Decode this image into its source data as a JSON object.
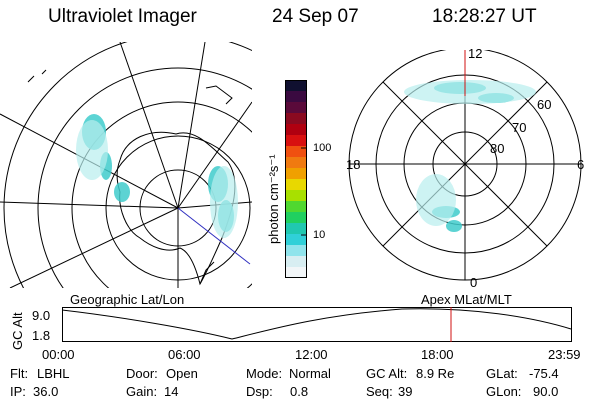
{
  "header": {
    "instrument": "Ultraviolet Imager",
    "date": "24 Sep 07",
    "time": "18:28:27 UT"
  },
  "colorbar": {
    "unit_label": "photon cm⁻²s⁻¹",
    "ticks": [
      "100",
      "10"
    ],
    "colors": [
      "#101030",
      "#3a0a40",
      "#5a0a3a",
      "#8a0a20",
      "#b00010",
      "#d81010",
      "#f05010",
      "#f07a10",
      "#f0a000",
      "#e8d800",
      "#a8e000",
      "#50d830",
      "#20d060",
      "#20c8b0",
      "#30d0d8",
      "#90e4ec",
      "#d8eef2",
      "#f2f6f8"
    ]
  },
  "geo_map": {
    "label": "Geographic Lat/Lon",
    "aurora_color": "#30c8c8"
  },
  "apex_map": {
    "label": "Apex MLat/MLT",
    "lat_labels": [
      "60",
      "70",
      "80"
    ],
    "mlt_labels": {
      "top": "12",
      "left": "18",
      "right": "6",
      "bottom": "0"
    }
  },
  "altitude_plot": {
    "ylabel": "GC Alt",
    "yticks": [
      "9.0",
      "1.8"
    ],
    "xticks": [
      "00:00",
      "06:00",
      "12:00",
      "18:00",
      "23:59"
    ],
    "marker_color": "#d01010"
  },
  "info": {
    "flt": {
      "label": "Flt:",
      "value": "LBHL"
    },
    "ip": {
      "label": "IP:",
      "value": "36.0"
    },
    "door": {
      "label": "Door:",
      "value": "Open"
    },
    "gain": {
      "label": "Gain:",
      "value": "14"
    },
    "mode": {
      "label": "Mode:",
      "value": "Normal"
    },
    "dsp": {
      "label": "Dsp:",
      "value": "0.8"
    },
    "gcalt": {
      "label": "GC Alt:",
      "value": "8.9 Re"
    },
    "seq": {
      "label": "Seq:",
      "value": "39"
    },
    "glat": {
      "label": "GLat:",
      "value": "-75.4"
    },
    "glon": {
      "label": "GLon:",
      "value": "90.0"
    }
  }
}
